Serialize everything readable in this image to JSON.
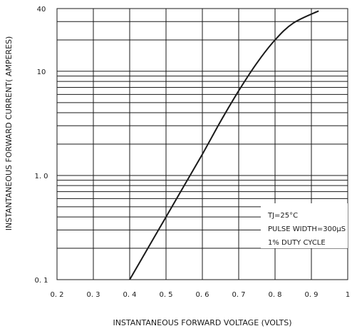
{
  "chart_data": {
    "type": "line",
    "scale": {
      "x": "linear",
      "y": "log"
    },
    "grid": true,
    "xlim": [
      0.2,
      1.0
    ],
    "ylim": [
      0.1,
      40
    ],
    "x_ticks": [
      0.2,
      0.3,
      0.4,
      0.5,
      0.6,
      0.7,
      0.8,
      0.9,
      1.0
    ],
    "x_tick_labels": [
      "0. 2",
      "0. 3",
      "0. 4",
      "0. 5",
      "0. 6",
      "0. 7",
      "0. 8",
      "0. 9",
      "1"
    ],
    "y_tick_values": [
      0.1,
      1.0,
      10,
      40
    ],
    "y_tick_labels": [
      "0. 1",
      "1. 0",
      "10",
      "40"
    ],
    "xlabel": "INSTANTANEOUS FORWARD VOLTAGE (VOLTS)",
    "ylabel": "INSTANTANEOUS FORWARD CURRENT( AMPERES)",
    "annotation_lines": [
      "TJ=25°C",
      "PULSE WIDTH=300µS",
      "1% DUTY CYCLE"
    ],
    "series": [
      {
        "x": [
          0.4,
          0.45,
          0.5,
          0.55,
          0.6,
          0.65,
          0.7,
          0.75,
          0.8,
          0.85,
          0.92
        ],
        "y": [
          0.1,
          0.2,
          0.4,
          0.8,
          1.6,
          3.3,
          6.5,
          12,
          20,
          29,
          38
        ]
      }
    ]
  }
}
